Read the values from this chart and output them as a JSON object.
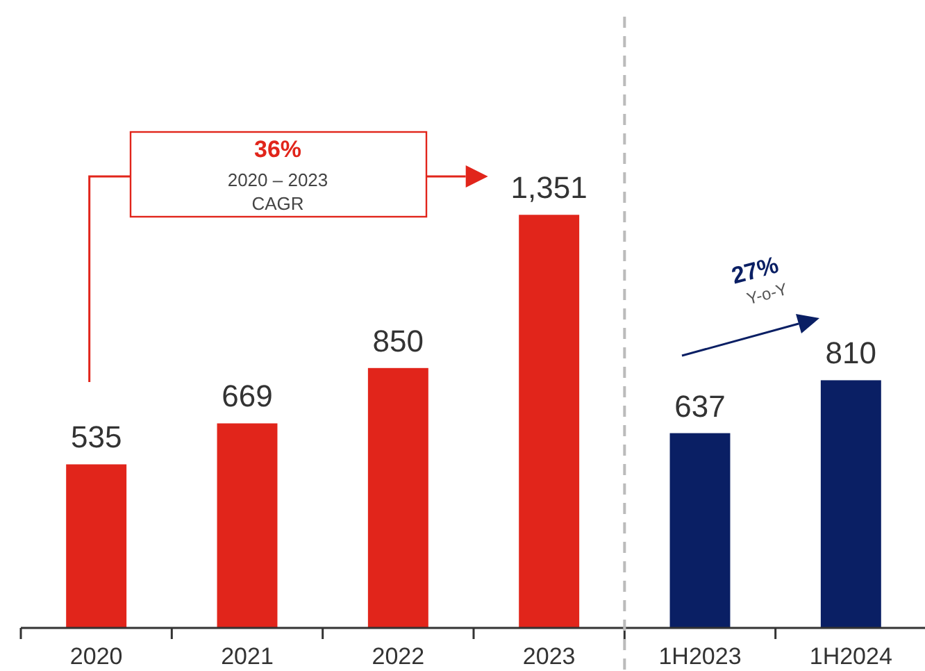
{
  "chart_data": {
    "type": "bar",
    "categories": [
      "2020",
      "2021",
      "2022",
      "2023",
      "1H2023",
      "1H2024"
    ],
    "values": [
      535,
      669,
      850,
      1351,
      637,
      810
    ],
    "colors": [
      "#e1251b",
      "#e1251b",
      "#e1251b",
      "#e1251b",
      "#0a1f64",
      "#0a1f64"
    ],
    "value_labels": [
      "535",
      "669",
      "850",
      "1,351",
      "637",
      "810"
    ],
    "annotations": [
      "36%",
      "2020 – 2023",
      "CAGR",
      "27%",
      "Y-o-Y"
    ]
  }
}
